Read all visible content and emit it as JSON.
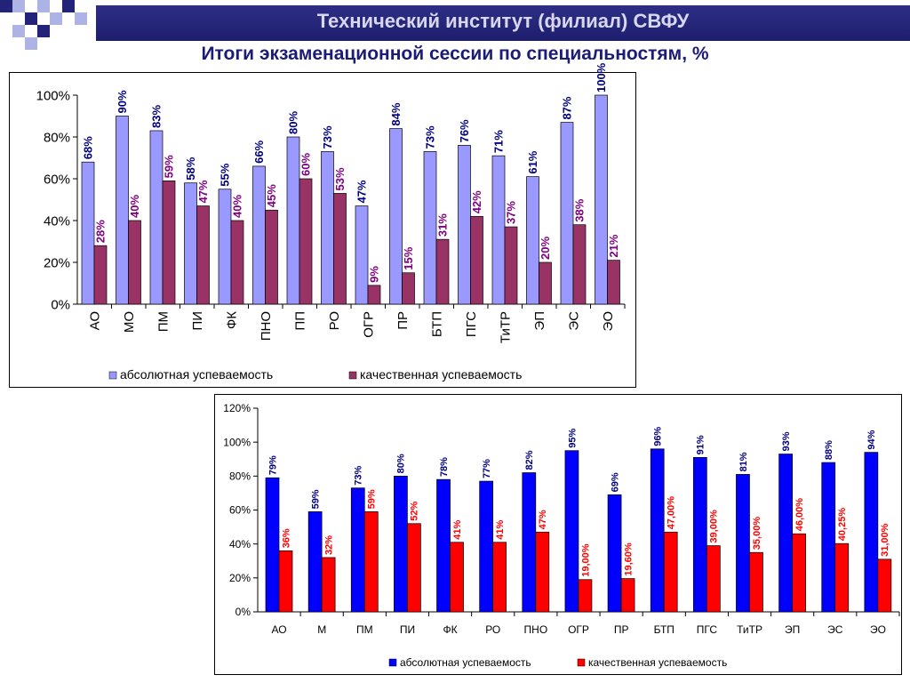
{
  "header": {
    "title": "Технический институт (филиал) СВФУ",
    "subtitle": "Итоги экзаменационной сессии по специальностям, %"
  },
  "colors": {
    "banner": "#23237a",
    "square_light": "#aeb3e6",
    "square_dark": "#23237a",
    "chart1_series1": "#9999ff",
    "chart1_series2": "#993366",
    "chart1_label1": "#000080",
    "chart1_label2": "#800080",
    "chart2_series1": "#0000ff",
    "chart2_series2": "#ff0000",
    "chart2_label1": "#000080",
    "chart2_label2": "#ff0000"
  },
  "chart_data": [
    {
      "type": "bar",
      "categories": [
        "АО",
        "МО",
        "ПМ",
        "ПИ",
        "ФК",
        "ПНО",
        "ПП",
        "РО",
        "ОГР",
        "ПР",
        "БТП",
        "ПГС",
        "ТиТР",
        "ЭП",
        "ЭС",
        "ЭО"
      ],
      "series": [
        {
          "name": "абсолютная успеваемость",
          "values": [
            68,
            90,
            83,
            58,
            55,
            66,
            80,
            73,
            47,
            84,
            73,
            76,
            71,
            61,
            87,
            100
          ],
          "labels": [
            "68%",
            "90%",
            "83%",
            "58%",
            "55%",
            "66%",
            "80%",
            "73%",
            "47%",
            "84%",
            "73%",
            "76%",
            "71%",
            "61%",
            "87%",
            "100%"
          ]
        },
        {
          "name": "качественная успеваемость",
          "values": [
            28,
            40,
            59,
            47,
            40,
            45,
            60,
            53,
            9,
            15,
            31,
            42,
            37,
            20,
            38,
            21
          ],
          "labels": [
            "28%",
            "40%",
            "59%",
            "47%",
            "40%",
            "45%",
            "60%",
            "53%",
            "9%",
            "15%",
            "31%",
            "42%",
            "37%",
            "20%",
            "38%",
            "21%"
          ]
        }
      ],
      "yticks": [
        "0%",
        "20%",
        "40%",
        "60%",
        "80%",
        "100%"
      ],
      "ylim": [
        0,
        100
      ],
      "legend": "bottom"
    },
    {
      "type": "bar",
      "categories": [
        "АО",
        "М",
        "ПМ",
        "ПИ",
        "ФК",
        "РО",
        "ПНО",
        "ОГР",
        "ПР",
        "БТП",
        "ПГС",
        "ТиТР",
        "ЭП",
        "ЭС",
        "ЭО"
      ],
      "series": [
        {
          "name": "абсолютная успеваемость",
          "values": [
            79,
            59,
            73,
            80,
            78,
            77,
            82,
            95,
            69,
            96,
            91,
            81,
            93,
            88,
            94
          ],
          "labels": [
            "79%",
            "59%",
            "73%",
            "80%",
            "78%",
            "77%",
            "82%",
            "95%",
            "69%",
            "96%",
            "91%",
            "81%",
            "93%",
            "88%",
            "94%"
          ]
        },
        {
          "name": "качественная успеваемость",
          "values": [
            36,
            32,
            59,
            52,
            41,
            41,
            47,
            19,
            19.6,
            47,
            39,
            35,
            46,
            40.25,
            31
          ],
          "labels": [
            "36%",
            "32%",
            "59%",
            "52%",
            "41%",
            "41%",
            "47%",
            "19,00%",
            "19,60%",
            "47,00%",
            "39,00%",
            "35,00%",
            "46,00%",
            "40,25%",
            "31,00%"
          ]
        }
      ],
      "yticks": [
        "0%",
        "20%",
        "40%",
        "60%",
        "80%",
        "100%",
        "120%"
      ],
      "ylim": [
        0,
        120
      ],
      "legend": "bottom"
    }
  ]
}
